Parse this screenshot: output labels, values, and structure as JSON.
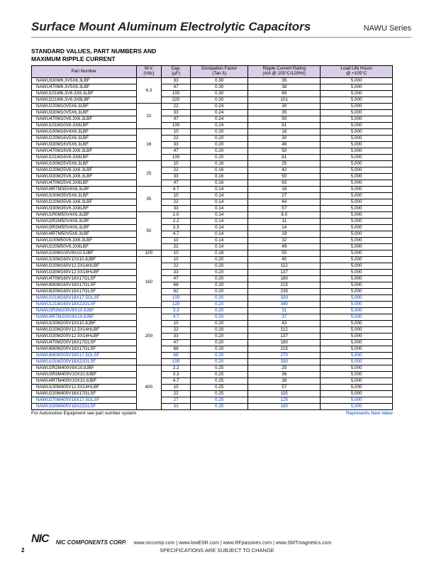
{
  "title": "Surface Mount Aluminum Electrolytic Capacitors",
  "series": "NAWU Series",
  "subhead": "STANDARD VALUES, PART NUMBERS AND\nMAXIMUM RIPPLE CURRENT",
  "headers": {
    "pn": "Part Number",
    "wv": "W.V.\n(Vdc)",
    "cap": "Cap.\n(µF)",
    "df": "Dissipation Factor\n(Tan δ)",
    "ripple": "Ripple Current Rating\n(mA @ 105°C/120Hz)",
    "life": "Load Life Hours\n@ +105°C"
  },
  "colwidths": {
    "pn": 145,
    "wv": 35,
    "cap": 40,
    "df": 80,
    "ripple": 100,
    "life": 100
  },
  "colors": {
    "header_bg": "#d9cfe6",
    "blue": "#0046d5",
    "border": "#000000"
  },
  "groups": [
    {
      "wv": "6.3",
      "rows": [
        {
          "pn": "NAWU330M6.3V5X6.3LBF",
          "cap": "33",
          "df": "0.30",
          "r": "35",
          "l": "5,000"
        },
        {
          "pn": "NAWU470M6.3V5X6.3LBF",
          "cap": "47",
          "df": "0.30",
          "r": "38",
          "l": "5,000"
        },
        {
          "pn": "NAWU101M6.3V6.3X6.3LBF",
          "cap": "100",
          "df": "0.30",
          "r": "69",
          "l": "5,000"
        },
        {
          "pn": "NAWU221M6.3V6.3X8LBF",
          "cap": "220",
          "df": "0.30",
          "r": "101",
          "l": "5,000"
        }
      ]
    },
    {
      "wv": "10",
      "rows": [
        {
          "pn": "NAWU220M10V5X6.3LBF",
          "cap": "22",
          "df": "0.24",
          "r": "30",
          "l": "5,000"
        },
        {
          "pn": "NAWU330M10V5X6.3LBF",
          "cap": "33",
          "df": "0.24",
          "r": "35",
          "l": "5,000"
        },
        {
          "pn": "NAWU470M10V6.3X6.3LBF",
          "cap": "47",
          "df": "0.24",
          "r": "50",
          "l": "5,000"
        },
        {
          "pn": "NAWU101M10V6.3X8LBF",
          "cap": "100",
          "df": "0.24",
          "r": "81",
          "l": "5,000"
        }
      ]
    },
    {
      "wv": "16",
      "rows": [
        {
          "pn": "NAWU100M16V4X6.3LBF",
          "cap": "10",
          "df": "0.20",
          "r": "18",
          "l": "5,000"
        },
        {
          "pn": "NAWU220M16V5X6.3LBF",
          "cap": "22",
          "df": "0.20",
          "r": "30",
          "l": "5,000"
        },
        {
          "pn": "NAWU330M16V5X6.3LBF",
          "cap": "33",
          "df": "0.20",
          "r": "48",
          "l": "5,000"
        },
        {
          "pn": "NAWU470M16V6.3X6.3LBF",
          "cap": "47",
          "df": "0.20",
          "r": "50",
          "l": "5,000"
        },
        {
          "pn": "NAWU101M16V6.3X8LBF",
          "cap": "100",
          "df": "0.20",
          "r": "81",
          "l": "5,000"
        }
      ]
    },
    {
      "wv": "25",
      "rows": [
        {
          "pn": "NAWU100M25V5X6.3LBF",
          "cap": "10",
          "df": "0.16",
          "r": "25",
          "l": "5,000"
        },
        {
          "pn": "NAWU220M25V6.3X6.3LBF",
          "cap": "22",
          "df": "0.16",
          "r": "42",
          "l": "5,000"
        },
        {
          "pn": "NAWU330M25V6.3X6.3LBF",
          "cap": "33",
          "df": "0.16",
          "r": "50",
          "l": "5,000"
        },
        {
          "pn": "NAWU470M25V6.3X8LBF",
          "cap": "47",
          "df": "0.16",
          "r": "63",
          "l": "5,000"
        }
      ]
    },
    {
      "wv": "35",
      "rows": [
        {
          "pn": "NAWU4R7M35V4X6.3LBF",
          "cap": "4.7",
          "df": "0.14",
          "r": "16",
          "l": "5,000"
        },
        {
          "pn": "NAWU100M35V5X6.3LBF",
          "cap": "10",
          "df": "0.14",
          "r": "27",
          "l": "5,000"
        },
        {
          "pn": "NAWU220M35V6.3X6.3LBF",
          "cap": "22",
          "df": "0.14",
          "r": "44",
          "l": "5,000"
        },
        {
          "pn": "NAWU330M35V6.3X8LBF",
          "cap": "33",
          "df": "0.14",
          "r": "57",
          "l": "5,000"
        }
      ]
    },
    {
      "wv": "50",
      "rows": [
        {
          "pn": "NAWU1R0M50V4X6.3LBF",
          "cap": "1.0",
          "df": "0.14",
          "r": "8.0",
          "l": "5,000"
        },
        {
          "pn": "NAWU2R2M50V4X6.3LBF",
          "cap": "2.2",
          "df": "0.14",
          "r": "11",
          "l": "5,000"
        },
        {
          "pn": "NAWU3R3M50V4X6.3LBF",
          "cap": "3.3",
          "df": "0.14",
          "r": "14",
          "l": "5,000"
        },
        {
          "pn": "NAWU4R7M50V5X6.3LBF",
          "cap": "4.7",
          "df": "0.14",
          "r": "19",
          "l": "5,000"
        },
        {
          "pn": "NAWU100M50V6.3X6.3LBF",
          "cap": "10",
          "df": "0.14",
          "r": "32",
          "l": "5,000"
        },
        {
          "pn": "NAWU220M50V6.3X8LBF",
          "cap": "22",
          "df": "0.14",
          "r": "49",
          "l": "5,000"
        }
      ]
    },
    {
      "wv": "100",
      "rows": [
        {
          "pn": "NAWU100M100V8X10.5JBF",
          "cap": "10",
          "df": "0.18",
          "r": "55",
          "l": "5,000"
        }
      ]
    },
    {
      "wv": "160",
      "rows": [
        {
          "pn": "NAWU100M160V10X10.8JBF",
          "cap": "10",
          "df": "0.20",
          "r": "45",
          "l": "5,000"
        },
        {
          "pn": "NAWU220M160V12.5X14HLBF",
          "cap": "22",
          "df": "0.20",
          "r": "112",
          "l": "5,000"
        },
        {
          "pn": "NAWU330M160V12.5X14HLBF",
          "cap": "33",
          "df": "0.20",
          "r": "137",
          "l": "5,000"
        },
        {
          "pn": "NAWU470M160V16X17GLSF",
          "cap": "47",
          "df": "0.20",
          "r": "180",
          "l": "5,000"
        },
        {
          "pn": "NAWU680M160V16X17GLSF",
          "cap": "68",
          "df": "0.20",
          "r": "215",
          "l": "5,000"
        },
        {
          "pn": "NAWU820M160V16X17GLSF",
          "cap": "82",
          "df": "0.20",
          "r": "235",
          "l": "5,000"
        },
        {
          "pn": "NAWU101M160V18X17.5GLSF",
          "cap": "100",
          "df": "0.20",
          "r": "320",
          "l": "5,000",
          "blue": true
        },
        {
          "pn": "NAWU121M160V18X22GLSF",
          "cap": "120",
          "df": "0.20",
          "r": "340",
          "l": "5,000",
          "blue": true
        }
      ]
    },
    {
      "wv": "200",
      "rows": [
        {
          "pn": "NAWU3R3M200V8X10.8JBF",
          "cap": "3.3",
          "df": "0.20",
          "r": "31",
          "l": "5,000",
          "blue": true
        },
        {
          "pn": "NAWU4R7M200V8X10.8JBF",
          "cap": "4.7",
          "df": "0.20",
          "r": "37",
          "l": "5,000",
          "blue": true
        },
        {
          "pn": "NAWU100M200V10X10.8JBF",
          "cap": "10",
          "df": "0.20",
          "r": "43",
          "l": "5,000"
        },
        {
          "pn": "NAWU220M200V12.5X14HLBF",
          "cap": "22",
          "df": "0.20",
          "r": "112",
          "l": "5,000"
        },
        {
          "pn": "NAWU330M200V12.5X14HLBF",
          "cap": "33",
          "df": "0.20",
          "r": "137",
          "l": "5,000"
        },
        {
          "pn": "NAWU470M200V16X17GLSF",
          "cap": "47",
          "df": "0.20",
          "r": "180",
          "l": "5,000"
        },
        {
          "pn": "NAWU680M200V16X17GLSF",
          "cap": "68",
          "df": "0.20",
          "r": "215",
          "l": "5,000"
        },
        {
          "pn": "NAWU680M200V18X17.5GLSF",
          "cap": "68",
          "df": "0.20",
          "r": "270",
          "l": "5,000",
          "blue": true
        },
        {
          "pn": "NAWU101M200V18X22GLSF",
          "cap": "100",
          "df": "0.20",
          "r": "330",
          "l": "5,000",
          "blue": true
        }
      ]
    },
    {
      "wv": "400",
      "rows": [
        {
          "pn": "NAWU2R2M400V8X10.8JBF",
          "cap": "2.2",
          "df": "0.25",
          "r": "25",
          "l": "5,000"
        },
        {
          "pn": "NAWU3R3M400V10X10.8JBF",
          "cap": "3.3",
          "df": "0.25",
          "r": "36",
          "l": "5,000"
        },
        {
          "pn": "NAWU4R7M400V10X10.8JBF",
          "cap": "4.7",
          "df": "0.25",
          "r": "38",
          "l": "5,000"
        },
        {
          "pn": "NAWU100M400V12.5X14HLBF",
          "cap": "10",
          "df": "0.25",
          "r": "57",
          "l": "5,000"
        },
        {
          "pn": "NAWU220M400V16X17GLSF",
          "cap": "22",
          "df": "0.25",
          "r": "115",
          "l": "5,000"
        },
        {
          "pn": "NAWU270M400V18X17.5GLSF",
          "cap": "27",
          "df": "0.25",
          "r": "125",
          "l": "5,000",
          "blue": true
        },
        {
          "pn": "NAWU330M400V18X22GLSF",
          "cap": "33",
          "df": "0.25",
          "r": "160",
          "l": "5,000",
          "blue": true
        }
      ]
    }
  ],
  "note_left": "For Automotive Equipment see part number system",
  "note_right": "Represents New Value",
  "footer": {
    "corp": "NIC COMPONENTS CORP.",
    "links": "www.niccomp.com   |   www.lowESR.com   |   www.RFpassives.com   |   www.SMTmagnetics.com",
    "spec": "SPECIFICATIONS ARE SUBJECT TO CHANGE",
    "page": "2"
  }
}
